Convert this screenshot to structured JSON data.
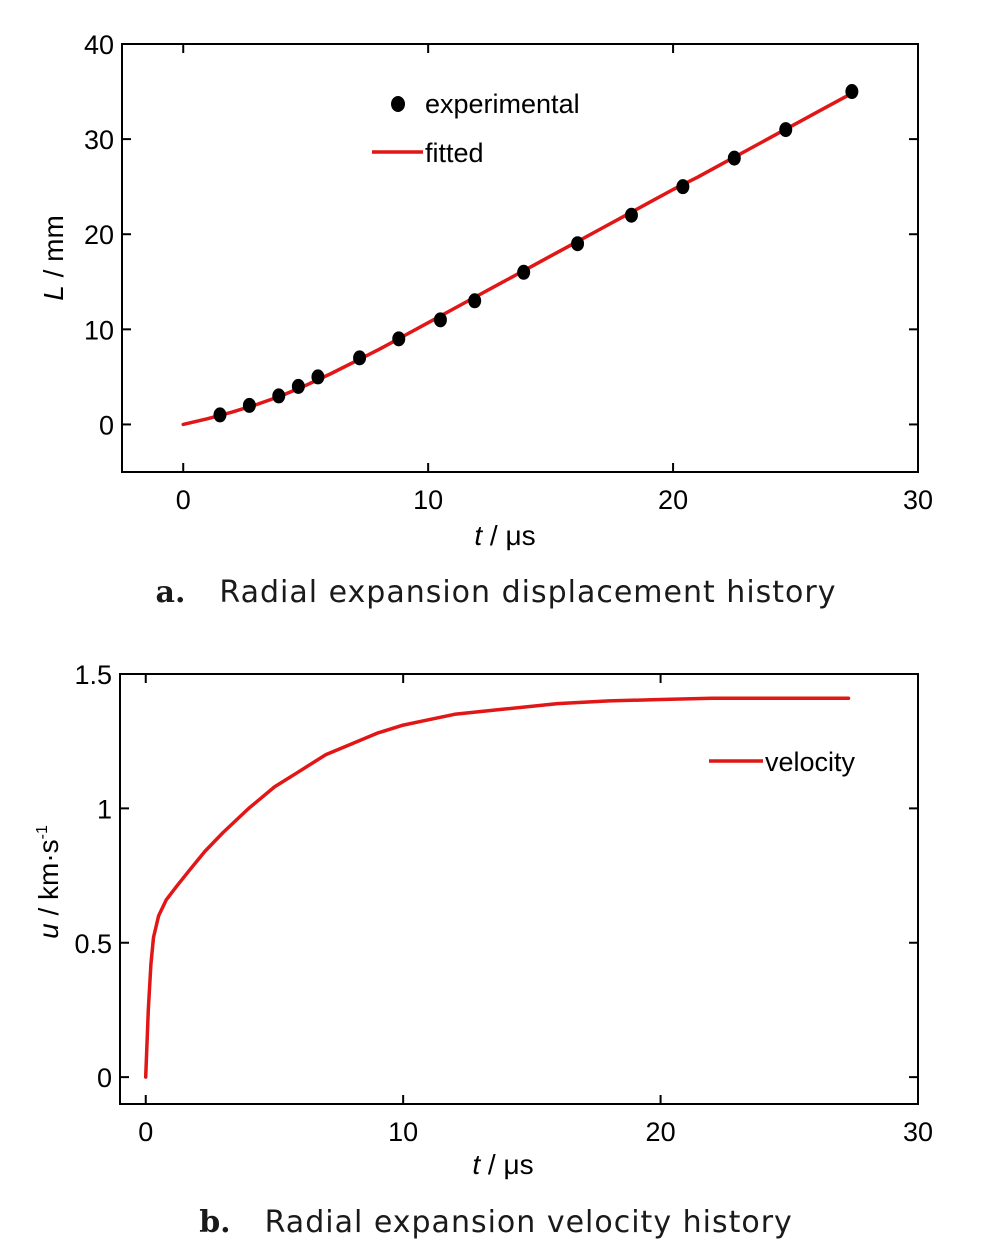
{
  "chart_data": [
    {
      "type": "scatter",
      "panel_letter": "a.",
      "caption": "Radial expansion displacement history",
      "xlabel_var": "t",
      "xlabel_unit": " / μs",
      "ylabel_var": "L",
      "ylabel_unit": " / mm",
      "xlim": [
        -2.5,
        30
      ],
      "ylim": [
        -5,
        40
      ],
      "xticks": [
        "0",
        "10",
        "20",
        "30"
      ],
      "xtick_values": [
        0,
        10,
        20,
        30
      ],
      "yticks": [
        "0",
        "10",
        "20",
        "30",
        "40"
      ],
      "ytick_values": [
        0,
        10,
        20,
        30,
        40
      ],
      "grid": false,
      "legend_position": "top-center",
      "series": [
        {
          "name": "experimental",
          "kind": "points",
          "color": "#000000",
          "x": [
            1.5,
            2.7,
            3.9,
            4.7,
            5.5,
            7.2,
            8.8,
            10.5,
            11.9,
            13.9,
            16.1,
            18.3,
            20.4,
            22.5,
            24.6,
            27.3
          ],
          "y": [
            1,
            2,
            3,
            4,
            5,
            7,
            9,
            11,
            13,
            16,
            19,
            22,
            25,
            28,
            31,
            35
          ]
        },
        {
          "name": "fitted",
          "kind": "line",
          "color": "#e11717",
          "x": [
            0,
            1,
            2,
            3,
            4,
            5,
            6,
            7,
            8,
            9,
            10,
            11,
            12,
            13,
            14,
            15,
            16,
            17,
            18,
            19,
            20,
            21,
            22,
            23,
            24,
            25,
            26,
            27,
            27.3
          ],
          "y": [
            0,
            0.6,
            1.3,
            2.1,
            3.0,
            4.1,
            5.3,
            6.6,
            7.9,
            9.3,
            10.7,
            12.1,
            13.5,
            14.9,
            16.3,
            17.7,
            19.1,
            20.5,
            21.9,
            23.3,
            24.7,
            26.0,
            27.4,
            28.8,
            30.2,
            31.6,
            33.0,
            34.4,
            34.8
          ]
        }
      ]
    },
    {
      "type": "line",
      "panel_letter": "b.",
      "caption": "Radial expansion velocity history",
      "xlabel_var": "t",
      "xlabel_unit": " / μs",
      "ylabel_var": "u",
      "ylabel_unit": " / km·s",
      "ylabel_sup": "-1",
      "xlim": [
        -1,
        30
      ],
      "ylim": [
        -0.1,
        1.5
      ],
      "xticks": [
        "0",
        "10",
        "20",
        "30"
      ],
      "xtick_values": [
        0,
        10,
        20,
        30
      ],
      "yticks": [
        "0",
        "0.5",
        "1",
        "1.5"
      ],
      "ytick_values": [
        0,
        0.5,
        1,
        1.5
      ],
      "grid": false,
      "legend_position": "top-right",
      "series": [
        {
          "name": "velocity",
          "kind": "line",
          "color": "#e11717",
          "x": [
            0,
            0.1,
            0.2,
            0.3,
            0.5,
            0.8,
            1.2,
            1.7,
            2.3,
            3,
            4,
            5,
            6,
            7,
            8,
            9,
            10,
            11,
            12,
            14,
            16,
            18,
            20,
            22,
            24,
            26,
            27.3
          ],
          "y": [
            0,
            0.25,
            0.42,
            0.52,
            0.6,
            0.66,
            0.71,
            0.77,
            0.84,
            0.91,
            1.0,
            1.08,
            1.14,
            1.2,
            1.24,
            1.28,
            1.31,
            1.33,
            1.35,
            1.37,
            1.39,
            1.4,
            1.405,
            1.41,
            1.41,
            1.41,
            1.41
          ]
        }
      ]
    }
  ]
}
